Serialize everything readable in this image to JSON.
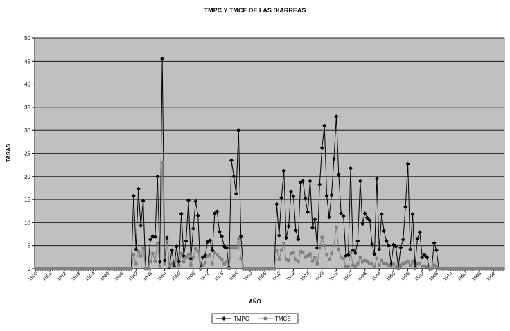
{
  "chart_data": {
    "type": "line",
    "title": "TMPC Y TMCE DE LAS DIARREAS",
    "x_label": "AÑO",
    "y_label": "TASAS",
    "categories": [
      "1800",
      null,
      null,
      null,
      null,
      null,
      "1806",
      null,
      null,
      null,
      null,
      null,
      "1812",
      null,
      null,
      null,
      null,
      null,
      "1818",
      null,
      null,
      null,
      null,
      null,
      "1824",
      null,
      null,
      null,
      null,
      null,
      "1830",
      null,
      null,
      null,
      null,
      null,
      "1836",
      null,
      null,
      null,
      null,
      null,
      "1842",
      null,
      null,
      null,
      null,
      null,
      "1848",
      null,
      null,
      null,
      null,
      null,
      "1854",
      null,
      null,
      null,
      null,
      null,
      "1860",
      null,
      null,
      null,
      null,
      null,
      "1866",
      null,
      null,
      null,
      null,
      null,
      "1872",
      null,
      null,
      null,
      null,
      null,
      "1878",
      null,
      null,
      null,
      null,
      null,
      "1884",
      null,
      null,
      null,
      null,
      null,
      "1890",
      null,
      null,
      null,
      null,
      null,
      "1896",
      null,
      null,
      null,
      null,
      null,
      "1902",
      null,
      null,
      null,
      null,
      null,
      "1908",
      null,
      null,
      null,
      null,
      null,
      "1914",
      null,
      null,
      null,
      null,
      null,
      "1920",
      null,
      null,
      null,
      null,
      null,
      "1926",
      null,
      null,
      null,
      null,
      null,
      "1932",
      null,
      null,
      null,
      null,
      null,
      "1938",
      null,
      null,
      null,
      null,
      null,
      "1944",
      null,
      null,
      null,
      null,
      null,
      "1950",
      null,
      null,
      null,
      null,
      null,
      "1956",
      null,
      null,
      null,
      null,
      null,
      "1962",
      null,
      null,
      null,
      null,
      null,
      "1968",
      null,
      null,
      null,
      null,
      null,
      "1974",
      null,
      null,
      null,
      null,
      null,
      "1980",
      null,
      null,
      null,
      null,
      null,
      "1986",
      null,
      null,
      null,
      null,
      null,
      "1992",
      null,
      null,
      null,
      null
    ],
    "series": [
      {
        "name": "TMPC",
        "color": "#000000",
        "marker": "diamond",
        "values": [
          0,
          0,
          0,
          0,
          0,
          0,
          0,
          0,
          0,
          0,
          0,
          0,
          0,
          0,
          0,
          0,
          0,
          0,
          0,
          0,
          0,
          0,
          0,
          0,
          0,
          0,
          0,
          0,
          0,
          0,
          0,
          0,
          0,
          0,
          0,
          0,
          0,
          0,
          0,
          0,
          0,
          15.8,
          4.2,
          17.3,
          9.3,
          14.7,
          0,
          0,
          6.3,
          7,
          6.9,
          20,
          1.5,
          45.5,
          1.8,
          6.7,
          0.3,
          4,
          0.5,
          4.8,
          1.5,
          11.9,
          2.8,
          6,
          14.8,
          2.2,
          8.7,
          14.6,
          11.5,
          0,
          2.5,
          2.8,
          5.8,
          6.1,
          4,
          12,
          12.4,
          8,
          7,
          4.8,
          4.5,
          0.3,
          23.5,
          20,
          16.3,
          30,
          7,
          0,
          0,
          0,
          0,
          0,
          0,
          0,
          0,
          0,
          0,
          0,
          0,
          0,
          0,
          14,
          7.2,
          15.4,
          21.2,
          6.7,
          9.2,
          16.7,
          15.7,
          8.3,
          6.4,
          18.7,
          19,
          15.2,
          12.3,
          19,
          8.9,
          10.7,
          4.5,
          18.3,
          26.2,
          31,
          15.8,
          11.2,
          16,
          23.8,
          33,
          20.4,
          12,
          11.4,
          2.8,
          3,
          21.8,
          4,
          3.4,
          6,
          19,
          9.7,
          12,
          11,
          10.5,
          5.3,
          3.2,
          19.5,
          4.2,
          11.8,
          8.2,
          6,
          5,
          1,
          5.2,
          4.8,
          0.2,
          4.6,
          6.3,
          13.4,
          22.7,
          4.2,
          11.8,
          0.3,
          6.5,
          7.9,
          2.5,
          3,
          2.5,
          0,
          0,
          5.6,
          4,
          0,
          0,
          0,
          0,
          0,
          0,
          0,
          0,
          0,
          0,
          0,
          0,
          0,
          0,
          0,
          0,
          0,
          0,
          0,
          0,
          0,
          0,
          0,
          0,
          0,
          0,
          0,
          0
        ]
      },
      {
        "name": "TMCE",
        "color": "#808080",
        "marker": "square",
        "values": [
          0,
          0,
          0,
          0,
          0,
          0,
          0,
          0,
          0,
          0,
          0,
          0,
          0,
          0,
          0,
          0,
          0,
          0,
          0,
          0,
          0,
          0,
          0,
          0,
          0,
          0,
          0,
          0,
          0,
          0,
          0,
          0,
          0,
          0,
          0,
          0,
          0,
          0,
          0,
          0,
          0,
          3,
          1,
          3.8,
          2.8,
          4.5,
          0,
          0,
          1.5,
          3.3,
          1.6,
          5.5,
          0.5,
          23,
          1,
          6,
          0.5,
          1,
          0.2,
          2,
          0.8,
          3.3,
          1.5,
          2.5,
          3,
          0.8,
          2.5,
          4.3,
          3.8,
          0,
          0.8,
          1.3,
          2.8,
          3,
          1,
          3.5,
          3,
          2.5,
          2,
          1,
          1.5,
          0,
          4.5,
          4.5,
          4.5,
          6.5,
          2.2,
          0,
          0,
          0,
          0,
          0,
          0,
          0,
          0,
          0,
          0,
          0,
          0,
          0,
          0,
          4,
          2,
          4,
          5.5,
          2,
          1.8,
          3.3,
          3.5,
          2,
          1.5,
          3.7,
          3.5,
          2.5,
          2.8,
          3.2,
          1.6,
          2.5,
          1,
          4.5,
          6.8,
          5,
          3,
          2,
          3.3,
          5,
          9,
          4.2,
          2.5,
          2.2,
          0.5,
          0.5,
          3.5,
          0.8,
          0.5,
          1,
          2.5,
          1.5,
          1.8,
          1.5,
          1.2,
          1,
          0.5,
          2.3,
          0.8,
          1.8,
          1.2,
          1,
          0.8,
          0.2,
          1,
          0.6,
          0,
          0.8,
          1,
          1.3,
          1.5,
          0.8,
          1.5,
          0,
          1,
          1.2,
          0.5,
          0.6,
          0.4,
          0,
          0,
          0.8,
          0.5,
          0,
          0,
          0,
          0,
          0,
          0,
          0,
          0,
          0,
          0,
          0,
          0,
          0,
          0,
          0,
          0,
          0,
          0,
          0,
          0,
          0,
          0,
          0,
          0,
          0,
          0,
          0,
          0
        ]
      }
    ],
    "ylim": [
      0,
      50
    ],
    "yticks": [
      0,
      5,
      10,
      15,
      20,
      25,
      30,
      35,
      40,
      45,
      50
    ],
    "grid": true,
    "plot_background": "#c0c0c0",
    "legend": "bottom"
  }
}
